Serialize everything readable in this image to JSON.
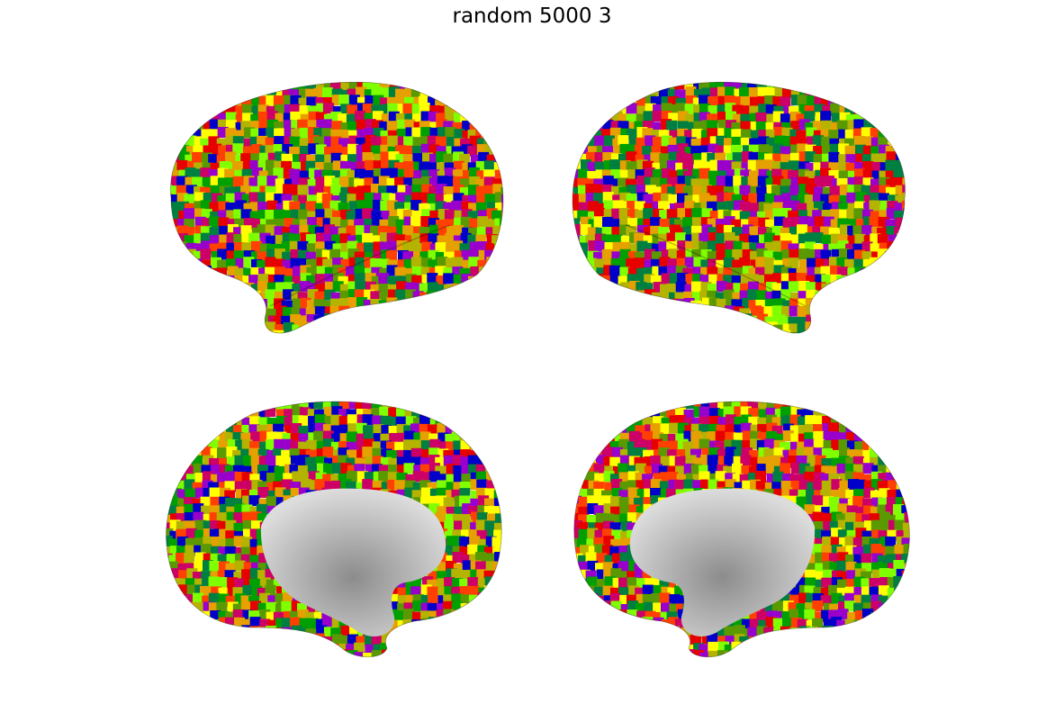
{
  "figure": {
    "title": "random 5000 3"
  },
  "views": [
    {
      "name": "left-lateral",
      "hemisphere": "left",
      "view": "lateral"
    },
    {
      "name": "right-lateral",
      "hemisphere": "right",
      "view": "lateral"
    },
    {
      "name": "left-medial",
      "hemisphere": "left",
      "view": "medial"
    },
    {
      "name": "right-medial",
      "hemisphere": "right",
      "view": "medial"
    }
  ],
  "parcellation_colors": [
    "#e60000",
    "#0000c8",
    "#00a000",
    "#ffff00",
    "#7fff00",
    "#e6a000",
    "#9900cc",
    "#008040",
    "#b4b400",
    "#cc0066",
    "#ff4000",
    "#5a9a00"
  ],
  "medial_wall_color": "#b0b0b0"
}
